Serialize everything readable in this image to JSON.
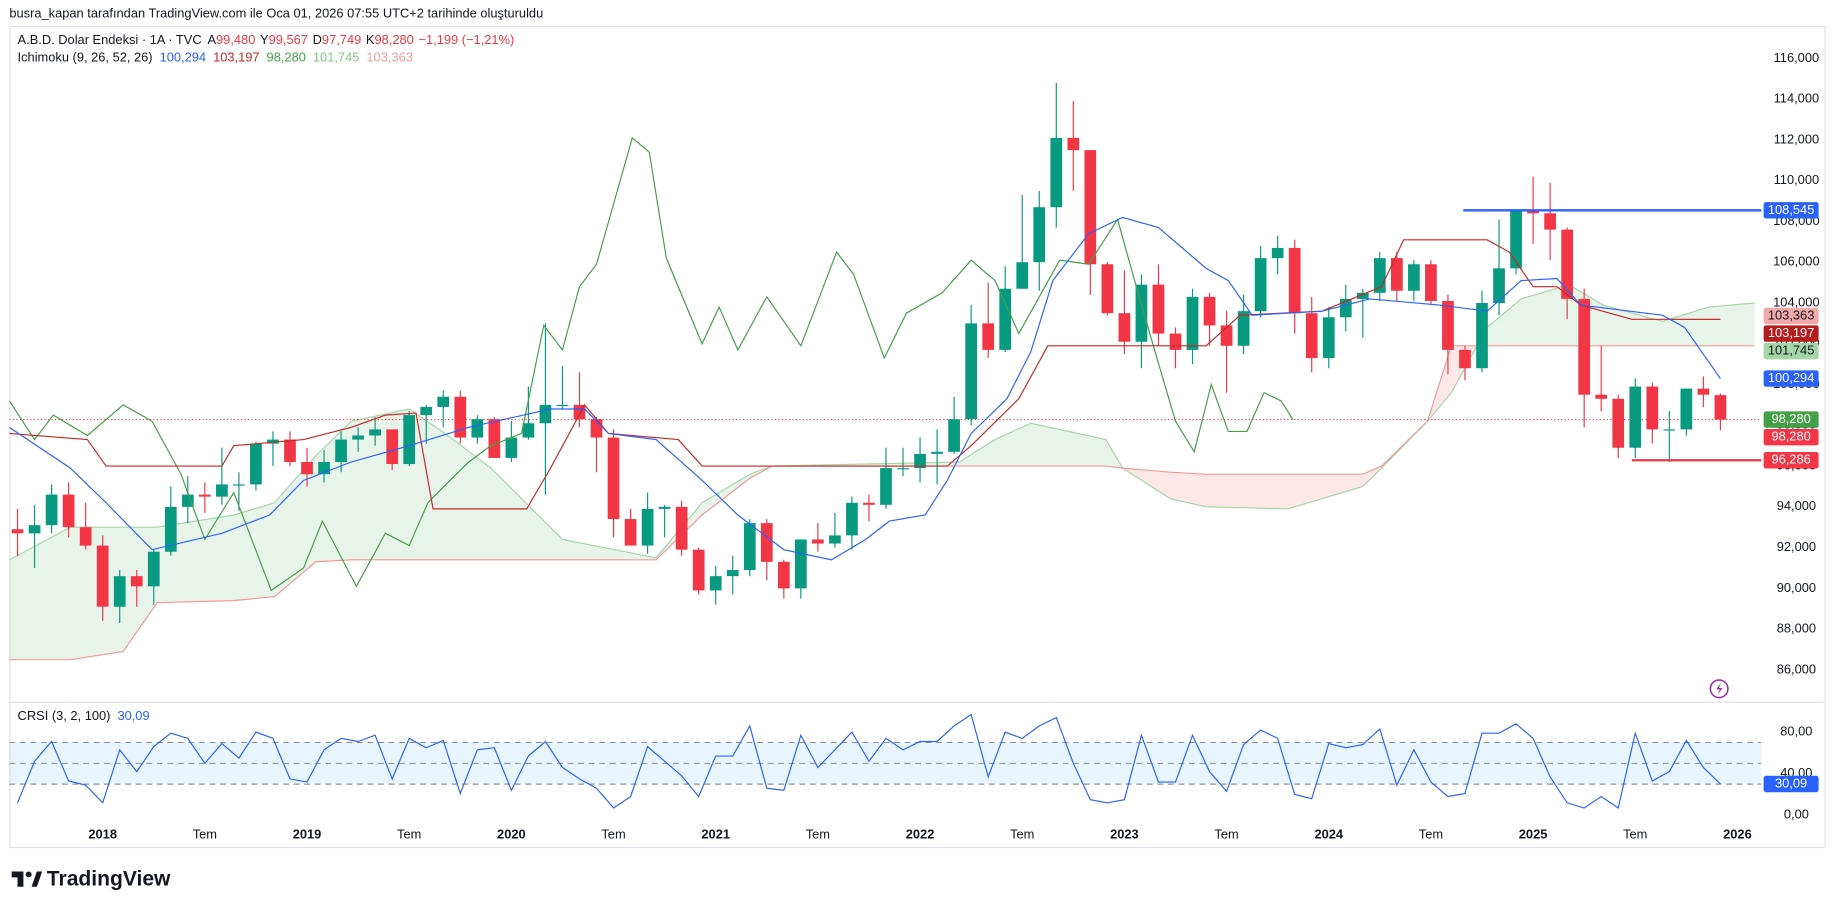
{
  "header": {
    "credit": "busra_kapan tarafından TradingView.com ile Oca 01, 2026 07:55 UTC+2 tarihinde oluşturuldu",
    "symbol": "A.B.D. Dolar Endeksi · 1A · TVC",
    "ohlc": [
      {
        "key": "A",
        "value": "99,480"
      },
      {
        "key": "Y",
        "value": "99,567"
      },
      {
        "key": "D",
        "value": "97,749"
      },
      {
        "key": "K",
        "value": "98,280"
      }
    ],
    "change": "−1,199 (−1,21%)",
    "value_color": "#f23645",
    "indicator": "Ichimoku (9, 26, 52, 26)",
    "indicator_values": [
      {
        "value": "100,294",
        "color": "#2962ff"
      },
      {
        "value": "103,197",
        "color": "#c62828"
      },
      {
        "value": "98,280",
        "color": "#43a047"
      },
      {
        "value": "101,745",
        "color": "#81c784"
      },
      {
        "value": "103,363",
        "color": "#ef9a9a"
      }
    ],
    "crsi_name": "CRSI (3, 2, 100)",
    "crsi_value": "30,09",
    "crsi_color": "#2962ff"
  },
  "chart_data": [
    {
      "type": "candlestick",
      "up_color": "#089981",
      "down_color": "#f23645",
      "xlim": [
        -0.48,
        102.4
      ],
      "ylim": [
        84.5,
        117.6
      ],
      "xticks": [
        {
          "value": 5,
          "label": "2018"
        },
        {
          "value": 11,
          "label": "Tem"
        },
        {
          "value": 17,
          "label": "2019"
        },
        {
          "value": 23,
          "label": "Tem"
        },
        {
          "value": 29,
          "label": "2020"
        },
        {
          "value": 35,
          "label": "Tem"
        },
        {
          "value": 41,
          "label": "2021"
        },
        {
          "value": 47,
          "label": "Tem"
        },
        {
          "value": 53,
          "label": "2022"
        },
        {
          "value": 59,
          "label": "Tem"
        },
        {
          "value": 65,
          "label": "2023"
        },
        {
          "value": 71,
          "label": "Tem"
        },
        {
          "value": 77,
          "label": "2024"
        },
        {
          "value": 83,
          "label": "Tem"
        },
        {
          "value": 89,
          "label": "2025"
        },
        {
          "value": 95,
          "label": "Tem"
        },
        {
          "value": 101,
          "label": "2026"
        }
      ],
      "yticks": [
        {
          "value": 86,
          "label": "86,000"
        },
        {
          "value": 88,
          "label": "88,000"
        },
        {
          "value": 90,
          "label": "90,000"
        },
        {
          "value": 92,
          "label": "92,000"
        },
        {
          "value": 94,
          "label": "94,000"
        },
        {
          "value": 96,
          "label": "96,000"
        },
        {
          "value": 98,
          "label": "98,000"
        },
        {
          "value": 100,
          "label": "100,000"
        },
        {
          "value": 102,
          "label": "102,000"
        },
        {
          "value": 104,
          "label": "104,000"
        },
        {
          "value": 106,
          "label": "106,000"
        },
        {
          "value": 108,
          "label": "108,000"
        },
        {
          "value": 110,
          "label": "110,000"
        },
        {
          "value": 112,
          "label": "112,000"
        },
        {
          "value": 114,
          "label": "114,000"
        },
        {
          "value": 116,
          "label": "116,000"
        }
      ],
      "open": [
        92.9,
        92.7,
        93.1,
        94.6,
        93.0,
        92.1,
        89.1,
        90.6,
        90.1,
        91.8,
        94.0,
        94.6,
        94.5,
        95.1,
        95.1,
        97.1,
        97.3,
        96.2,
        95.6,
        96.2,
        97.3,
        97.5,
        97.8,
        96.1,
        98.5,
        98.9,
        99.4,
        97.4,
        98.3,
        96.4,
        97.4,
        98.1,
        99.0,
        99.0,
        98.3,
        97.4,
        93.4,
        92.1,
        93.9,
        94.0,
        91.9,
        89.9,
        90.6,
        90.9,
        93.2,
        91.3,
        90.0,
        92.4,
        92.2,
        92.6,
        94.2,
        94.1,
        95.9,
        95.9,
        96.6,
        96.7,
        98.3,
        103.0,
        101.7,
        104.7,
        106.0,
        108.7,
        112.1,
        111.5,
        105.9,
        103.5,
        102.1,
        104.9,
        102.5,
        101.7,
        104.3,
        102.9,
        101.9,
        103.6,
        106.2,
        106.7,
        103.5,
        101.3,
        103.3,
        104.2,
        104.5,
        106.2,
        104.6,
        105.9,
        104.1,
        101.7,
        100.8,
        104.0,
        105.7,
        108.5,
        108.4,
        107.6,
        104.2,
        99.5,
        99.3,
        96.9,
        99.9,
        97.8,
        97.8,
        99.8,
        99.48
      ],
      "high": [
        93.9,
        94.1,
        95.1,
        95.2,
        94.2,
        92.6,
        90.9,
        90.9,
        91.9,
        95.0,
        95.5,
        95.2,
        96.9,
        95.7,
        97.2,
        97.7,
        97.7,
        96.9,
        96.8,
        97.7,
        97.9,
        98.4,
        97.8,
        98.7,
        99.0,
        99.7,
        99.7,
        98.5,
        98.4,
        98.2,
        99.9,
        103.0,
        100.9,
        100.6,
        98.4,
        97.8,
        93.9,
        94.7,
        94.1,
        94.3,
        92.0,
        91.1,
        91.6,
        93.4,
        93.4,
        91.4,
        92.4,
        93.2,
        93.7,
        94.5,
        94.6,
        96.9,
        96.9,
        97.4,
        97.8,
        99.4,
        103.9,
        105.0,
        105.8,
        109.3,
        109.5,
        114.8,
        113.9,
        111.5,
        106.0,
        105.6,
        105.4,
        105.9,
        102.8,
        104.7,
        104.5,
        103.6,
        104.4,
        106.8,
        107.3,
        107.1,
        104.3,
        103.8,
        104.9,
        104.7,
        106.5,
        106.5,
        106.1,
        106.1,
        104.4,
        101.9,
        104.6,
        108.1,
        108.5,
        110.2,
        109.9,
        107.7,
        104.7,
        101.9,
        99.5,
        100.3,
        100.1,
        98.7,
        99.8,
        100.4,
        99.567
      ],
      "low": [
        91.6,
        91.0,
        92.7,
        92.5,
        91.9,
        88.4,
        88.3,
        89.1,
        89.2,
        91.6,
        93.2,
        93.7,
        94.1,
        93.8,
        94.8,
        96.0,
        96.0,
        95.0,
        95.2,
        95.7,
        96.7,
        97.0,
        95.8,
        96.0,
        97.1,
        97.9,
        97.1,
        97.1,
        96.4,
        96.2,
        97.3,
        94.6,
        98.8,
        97.9,
        95.7,
        92.5,
        92.1,
        91.7,
        92.5,
        91.6,
        89.7,
        89.2,
        89.7,
        90.6,
        90.4,
        89.5,
        89.5,
        91.8,
        92.0,
        91.9,
        93.3,
        93.9,
        95.5,
        95.2,
        95.1,
        96.6,
        98.0,
        101.3,
        101.6,
        104.7,
        104.6,
        107.7,
        109.5,
        104.4,
        103.4,
        101.5,
        100.8,
        101.9,
        100.8,
        101.0,
        101.9,
        99.6,
        101.5,
        103.3,
        105.4,
        102.5,
        100.6,
        100.8,
        102.6,
        102.3,
        104.1,
        104.1,
        104.1,
        103.9,
        100.5,
        100.2,
        100.6,
        103.4,
        105.4,
        106.9,
        106.1,
        103.2,
        97.9,
        98.7,
        96.4,
        96.4,
        97.1,
        96.2,
        97.5,
        98.9,
        97.749
      ],
      "close": [
        92.7,
        93.1,
        94.6,
        93.0,
        92.1,
        89.1,
        90.6,
        90.1,
        91.8,
        94.0,
        94.6,
        94.5,
        95.1,
        95.1,
        97.1,
        97.3,
        96.2,
        95.6,
        96.2,
        97.3,
        97.5,
        97.8,
        96.1,
        98.5,
        98.9,
        99.4,
        97.4,
        98.3,
        96.4,
        97.4,
        98.1,
        99.0,
        99.0,
        98.3,
        97.4,
        93.4,
        92.1,
        93.9,
        94.0,
        91.9,
        89.9,
        90.6,
        90.9,
        93.2,
        91.3,
        90.0,
        92.4,
        92.2,
        92.6,
        94.2,
        94.1,
        95.9,
        95.9,
        96.6,
        96.7,
        98.3,
        103.0,
        101.7,
        104.7,
        106.0,
        108.7,
        112.1,
        111.5,
        105.9,
        103.5,
        102.1,
        104.9,
        102.5,
        101.7,
        104.3,
        102.9,
        101.9,
        103.6,
        106.2,
        106.7,
        103.5,
        101.3,
        103.3,
        104.2,
        104.5,
        106.2,
        104.6,
        105.9,
        104.1,
        101.7,
        100.8,
        104.0,
        105.7,
        108.5,
        108.4,
        107.6,
        104.2,
        99.5,
        99.3,
        96.9,
        99.9,
        97.8,
        97.8,
        99.8,
        99.5,
        98.28
      ],
      "cloud": {
        "up_color": "rgba(67,160,71,0.12)",
        "down_color": "rgba(244,67,54,0.12)",
        "a_color": "#a5d6a7",
        "b_color": "#ef9a9a",
        "x": [
          -0.48,
          3.1,
          6.2,
          8.2,
          12.7,
          15.1,
          17.5,
          19.6,
          23.0,
          25.1,
          27.8,
          32.0,
          37.5,
          40.2,
          43.0,
          44.3,
          55.3,
          57.4,
          59.5,
          63.9,
          64.9,
          67.7,
          69.8,
          74.6,
          79.0,
          80.1,
          82.8,
          84.2,
          86.3,
          88.3,
          91.1,
          93.1,
          96.6,
          99.3,
          102.0
        ],
        "span_a": [
          91.4,
          93.0,
          93.0,
          93.0,
          93.6,
          94.2,
          96.5,
          98.2,
          98.8,
          97.6,
          95.9,
          92.4,
          91.5,
          94.2,
          95.6,
          96.0,
          96.2,
          97.3,
          98.1,
          97.3,
          95.9,
          94.4,
          94.0,
          93.9,
          95.0,
          95.9,
          98.2,
          99.6,
          102.8,
          104.2,
          104.9,
          103.9,
          103.1,
          103.8,
          104.0
        ],
        "span_b": [
          86.5,
          86.5,
          86.9,
          89.3,
          89.4,
          89.6,
          91.3,
          91.4,
          91.4,
          91.4,
          91.4,
          91.4,
          91.4,
          93.6,
          95.4,
          96.0,
          96.0,
          96.0,
          96.0,
          96.0,
          95.9,
          95.7,
          95.6,
          95.6,
          95.6,
          96.0,
          98.2,
          101.9,
          101.9,
          101.9,
          101.9,
          101.9,
          101.9,
          101.9,
          101.9
        ]
      },
      "lines": [
        {
          "color": "#43a047",
          "x": [
            -0.48,
            1.0,
            2.1,
            4.1,
            6.2,
            7.9,
            9.6,
            11.0,
            12.7,
            14.9,
            16.8,
            17.9,
            19.9,
            21.6,
            23.0,
            24.1,
            25.4,
            26.5,
            27.8,
            29.6,
            30.9,
            32.0,
            33.0,
            34.0,
            36.1,
            37.1,
            38.1,
            40.2,
            41.2,
            42.3,
            44.0,
            46.0,
            48.1,
            49.1,
            50.9,
            52.2,
            54.3,
            56.0,
            57.4,
            58.8,
            61.2,
            62.9,
            64.6,
            65.6,
            66.7,
            68.0,
            69.1,
            70.1,
            71.1,
            72.2,
            73.2,
            74.2,
            74.9
          ],
          "values": [
            99.2,
            97.3,
            98.5,
            97.5,
            99.0,
            98.2,
            95.6,
            92.4,
            94.7,
            89.9,
            91.0,
            93.3,
            90.1,
            92.7,
            92.1,
            94.2,
            95.3,
            96.2,
            97.0,
            97.6,
            102.9,
            101.7,
            104.8,
            105.9,
            112.1,
            111.4,
            106.2,
            102.0,
            103.8,
            101.7,
            104.3,
            101.9,
            106.5,
            105.4,
            101.3,
            103.5,
            104.5,
            106.1,
            105.1,
            102.5,
            106.1,
            105.9,
            108.1,
            105.1,
            101.9,
            98.2,
            96.7,
            100.0,
            97.7,
            97.7,
            99.6,
            99.2,
            98.28
          ]
        },
        {
          "color": "#c62828",
          "x": [
            -0.48,
            4.1,
            5.2,
            12.0,
            12.7,
            16.8,
            19.6,
            21.6,
            23.4,
            24.4,
            29.9,
            31.3,
            33.3,
            34.7,
            38.8,
            40.2,
            54.6,
            56.0,
            58.8,
            60.5,
            69.8,
            71.8,
            76.6,
            80.1,
            81.4,
            86.3,
            87.6,
            89.0,
            90.4,
            91.8,
            94.8,
            100.0
          ],
          "values": [
            97.6,
            97.3,
            96.0,
            96.0,
            97.0,
            97.3,
            97.9,
            98.5,
            98.6,
            93.9,
            93.9,
            95.9,
            99.0,
            97.6,
            97.3,
            96.0,
            96.0,
            97.0,
            99.3,
            101.9,
            101.9,
            103.4,
            103.6,
            104.8,
            107.1,
            107.1,
            106.5,
            104.8,
            104.8,
            103.9,
            103.2,
            103.197
          ]
        },
        {
          "color": "#2962ff",
          "x": [
            -0.48,
            3.1,
            5.2,
            7.9,
            12.0,
            14.8,
            16.8,
            19.6,
            23.0,
            26.5,
            31.3,
            33.3,
            34.7,
            37.5,
            40.2,
            42.3,
            45.0,
            47.8,
            49.8,
            51.2,
            53.3,
            54.6,
            56.0,
            58.1,
            59.5,
            60.8,
            62.9,
            64.9,
            67.0,
            69.8,
            71.1,
            72.5,
            76.6,
            79.4,
            83.5,
            86.3,
            88.3,
            90.4,
            91.8,
            96.6,
            97.9,
            100.0
          ],
          "values": [
            97.9,
            95.9,
            94.2,
            91.9,
            92.7,
            93.6,
            95.3,
            96.2,
            97.0,
            97.9,
            98.8,
            98.8,
            97.6,
            97.3,
            95.3,
            93.6,
            91.9,
            91.4,
            92.4,
            93.3,
            93.6,
            95.3,
            97.6,
            99.3,
            101.6,
            105.1,
            107.4,
            108.2,
            107.7,
            105.7,
            105.1,
            103.4,
            103.6,
            104.2,
            103.9,
            103.6,
            105.1,
            105.2,
            103.9,
            103.4,
            102.8,
            100.294
          ]
        }
      ],
      "price_labels": [
        {
          "value": 108.545,
          "label": "108,545",
          "color": "#2962ff",
          "x_start": 84.9
        },
        {
          "value": 103.363,
          "label": "103,363",
          "color": "#f4a9a9",
          "text_color": "#131722"
        },
        {
          "value": 103.197,
          "label": "103,197",
          "color": "#b71c1c"
        },
        {
          "value": 101.745,
          "label": "101,745",
          "color": "#a5d6a7",
          "text_color": "#131722"
        },
        {
          "value": 100.294,
          "label": "100,294",
          "color": "#2962ff"
        },
        {
          "value": 98.28,
          "label": "98,280",
          "color": "#43a047"
        },
        {
          "value": 98.28,
          "label": "98,280",
          "color": "#f23645",
          "dotted": true
        },
        {
          "value": 96.286,
          "label": "96,286",
          "color": "#f23645",
          "x_start": 94.8
        }
      ]
    },
    {
      "type": "line",
      "color": "#2962ff",
      "ylim": [
        -7.9,
        108.2
      ],
      "yticks": [
        {
          "value": 0,
          "label": "0,00"
        },
        {
          "value": 40,
          "label": "40,00"
        },
        {
          "value": 80,
          "label": "80,00"
        }
      ],
      "bands": [
        30,
        50,
        70
      ],
      "band_fill": "rgba(33,150,243,0.1)",
      "last_label": "30,09",
      "values": [
        12,
        52,
        71,
        33,
        29,
        12,
        63,
        42,
        66,
        79,
        74,
        50,
        69,
        55,
        80,
        74,
        35,
        32,
        63,
        74,
        71,
        77,
        35,
        74,
        65,
        72,
        21,
        63,
        65,
        24,
        57,
        71,
        46,
        35,
        26,
        7,
        18,
        66,
        52,
        38,
        18,
        57,
        57,
        86,
        26,
        24,
        77,
        46,
        63,
        80,
        52,
        74,
        63,
        71,
        71,
        86,
        97,
        37,
        80,
        74,
        86,
        94,
        50,
        15,
        12,
        15,
        77,
        32,
        32,
        77,
        42,
        23,
        68,
        82,
        74,
        20,
        16,
        69,
        65,
        68,
        83,
        29,
        63,
        32,
        18,
        21,
        79,
        79,
        88,
        74,
        37,
        12,
        7,
        18,
        7,
        79,
        33,
        42,
        72,
        46,
        30.09
      ]
    }
  ],
  "footer": {
    "logo": "TradingView"
  }
}
